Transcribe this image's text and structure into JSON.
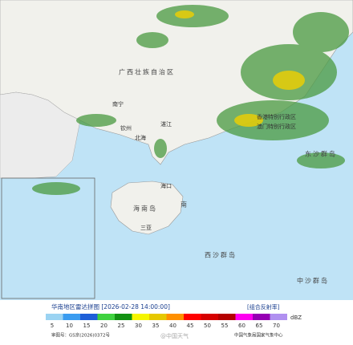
{
  "map": {
    "places": [
      {
        "name": "广西壮族自治区"
      },
      {
        "name": "南宁"
      },
      {
        "name": "钦州"
      },
      {
        "name": "北海"
      },
      {
        "name": "湛江"
      },
      {
        "name": "海口"
      },
      {
        "name": "海南岛"
      },
      {
        "name": "三亚"
      },
      {
        "name": "西沙群岛"
      },
      {
        "name": "中沙群岛"
      },
      {
        "name": "东沙群岛"
      },
      {
        "name": "香港特别行政区"
      },
      {
        "name": "澳门特别行政区"
      },
      {
        "name": "南"
      }
    ]
  },
  "footer": {
    "title": "华南地区雷达拼图 [2026-02-28 14:00:00]",
    "product": "[组合反射率]",
    "unit": "dBZ",
    "approval": "审图号：GS京(2026)0372号",
    "agency": "中国气象局国家气象中心",
    "watermark": "@中国天气",
    "legend": [
      {
        "value": 5,
        "color": "#9bd3f2"
      },
      {
        "value": 10,
        "color": "#3a9cf0"
      },
      {
        "value": 15,
        "color": "#1e5fd8"
      },
      {
        "value": 20,
        "color": "#3fd23f"
      },
      {
        "value": 25,
        "color": "#129112"
      },
      {
        "value": 30,
        "color": "#f5f500"
      },
      {
        "value": 35,
        "color": "#e6c800"
      },
      {
        "value": 40,
        "color": "#ff9000"
      },
      {
        "value": 45,
        "color": "#ff0000"
      },
      {
        "value": 50,
        "color": "#d60000"
      },
      {
        "value": 55,
        "color": "#b40000"
      },
      {
        "value": 60,
        "color": "#ff00f0"
      },
      {
        "value": 65,
        "color": "#9600b4"
      },
      {
        "value": 70,
        "color": "#b090f0"
      }
    ]
  }
}
